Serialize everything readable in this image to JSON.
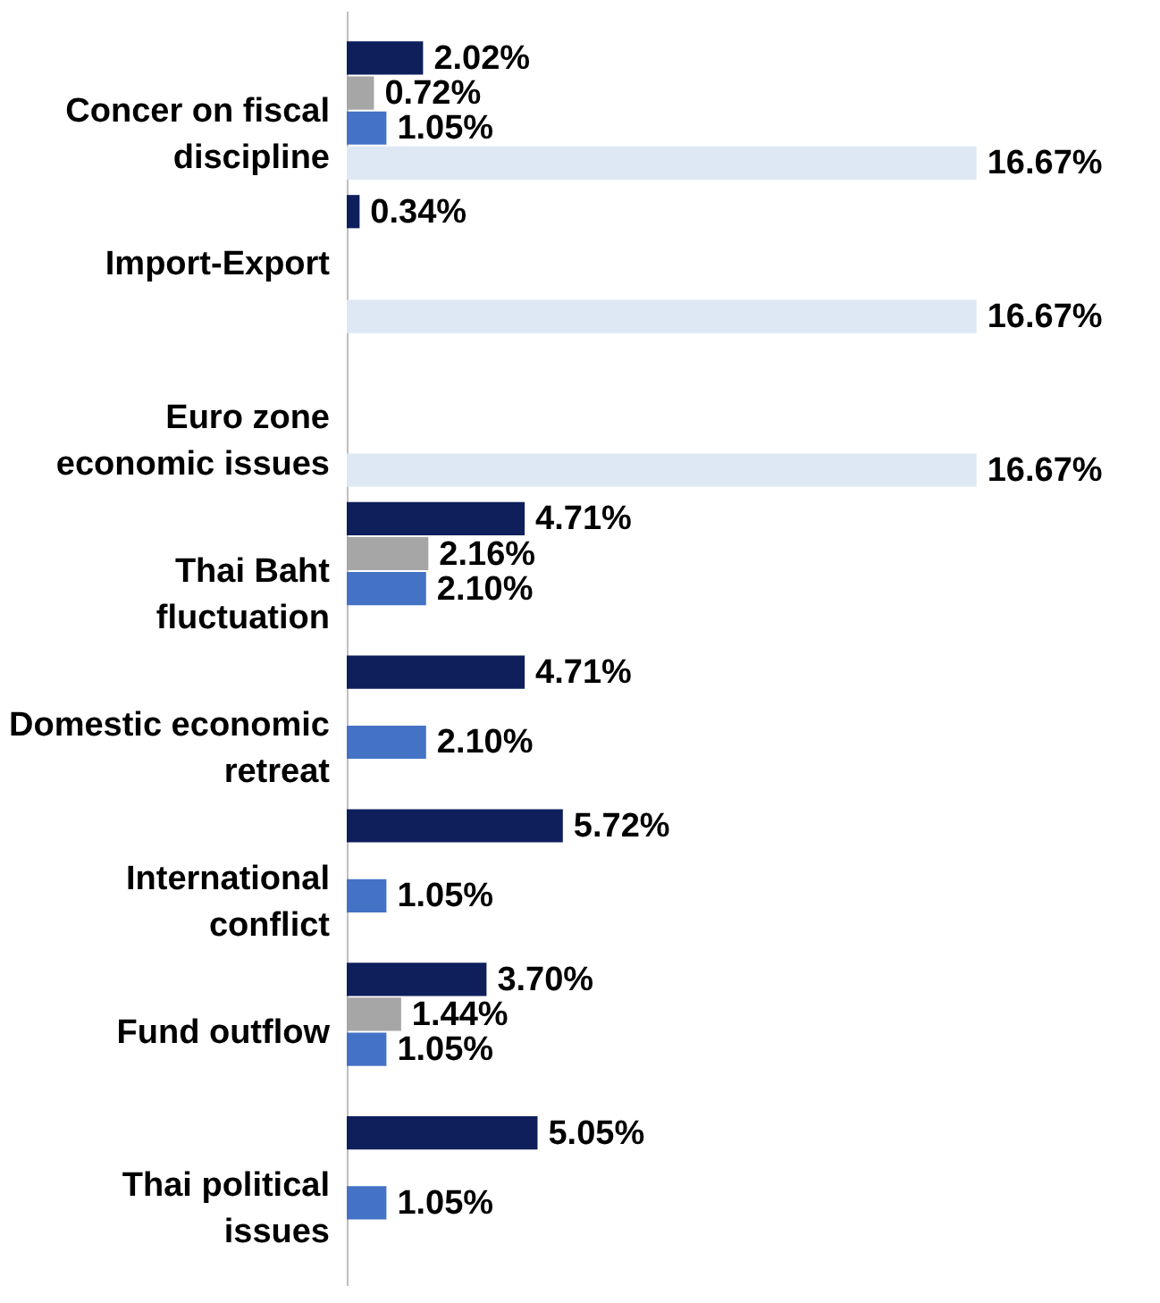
{
  "chart_data": {
    "type": "bar",
    "orientation": "horizontal",
    "categories": [
      "Concer on fiscal discipline",
      "Import-Export",
      "Euro zone economic issues",
      "Thai Baht fluctuation",
      "Domestic economic retreat",
      "International conflict",
      "Fund outflow",
      "Thai political issues"
    ],
    "series": [
      {
        "color": "#0f1f5c",
        "values": [
          2.02,
          0.34,
          null,
          4.71,
          4.71,
          5.72,
          3.7,
          5.05
        ],
        "value_labels": [
          "2.02%",
          "0.34%",
          null,
          "4.71%",
          "4.71%",
          "5.72%",
          "3.70%",
          "5.05%"
        ]
      },
      {
        "color": "#a6a6a6",
        "values": [
          0.72,
          null,
          null,
          2.16,
          null,
          null,
          1.44,
          null
        ],
        "value_labels": [
          "0.72%",
          null,
          null,
          "2.16%",
          null,
          null,
          "1.44%",
          null
        ]
      },
      {
        "color": "#4472c4",
        "values": [
          1.05,
          null,
          null,
          2.1,
          2.1,
          1.05,
          1.05,
          1.05
        ],
        "value_labels": [
          "1.05%",
          null,
          null,
          "2.10%",
          "2.10%",
          "1.05%",
          "1.05%",
          "1.05%"
        ]
      },
      {
        "color": "#dde8f4",
        "values": [
          16.67,
          16.67,
          16.67,
          null,
          null,
          null,
          null,
          null
        ],
        "value_labels": [
          "16.67%",
          "16.67%",
          "16.67%",
          null,
          null,
          null,
          null,
          null
        ]
      }
    ],
    "legend": false
  }
}
